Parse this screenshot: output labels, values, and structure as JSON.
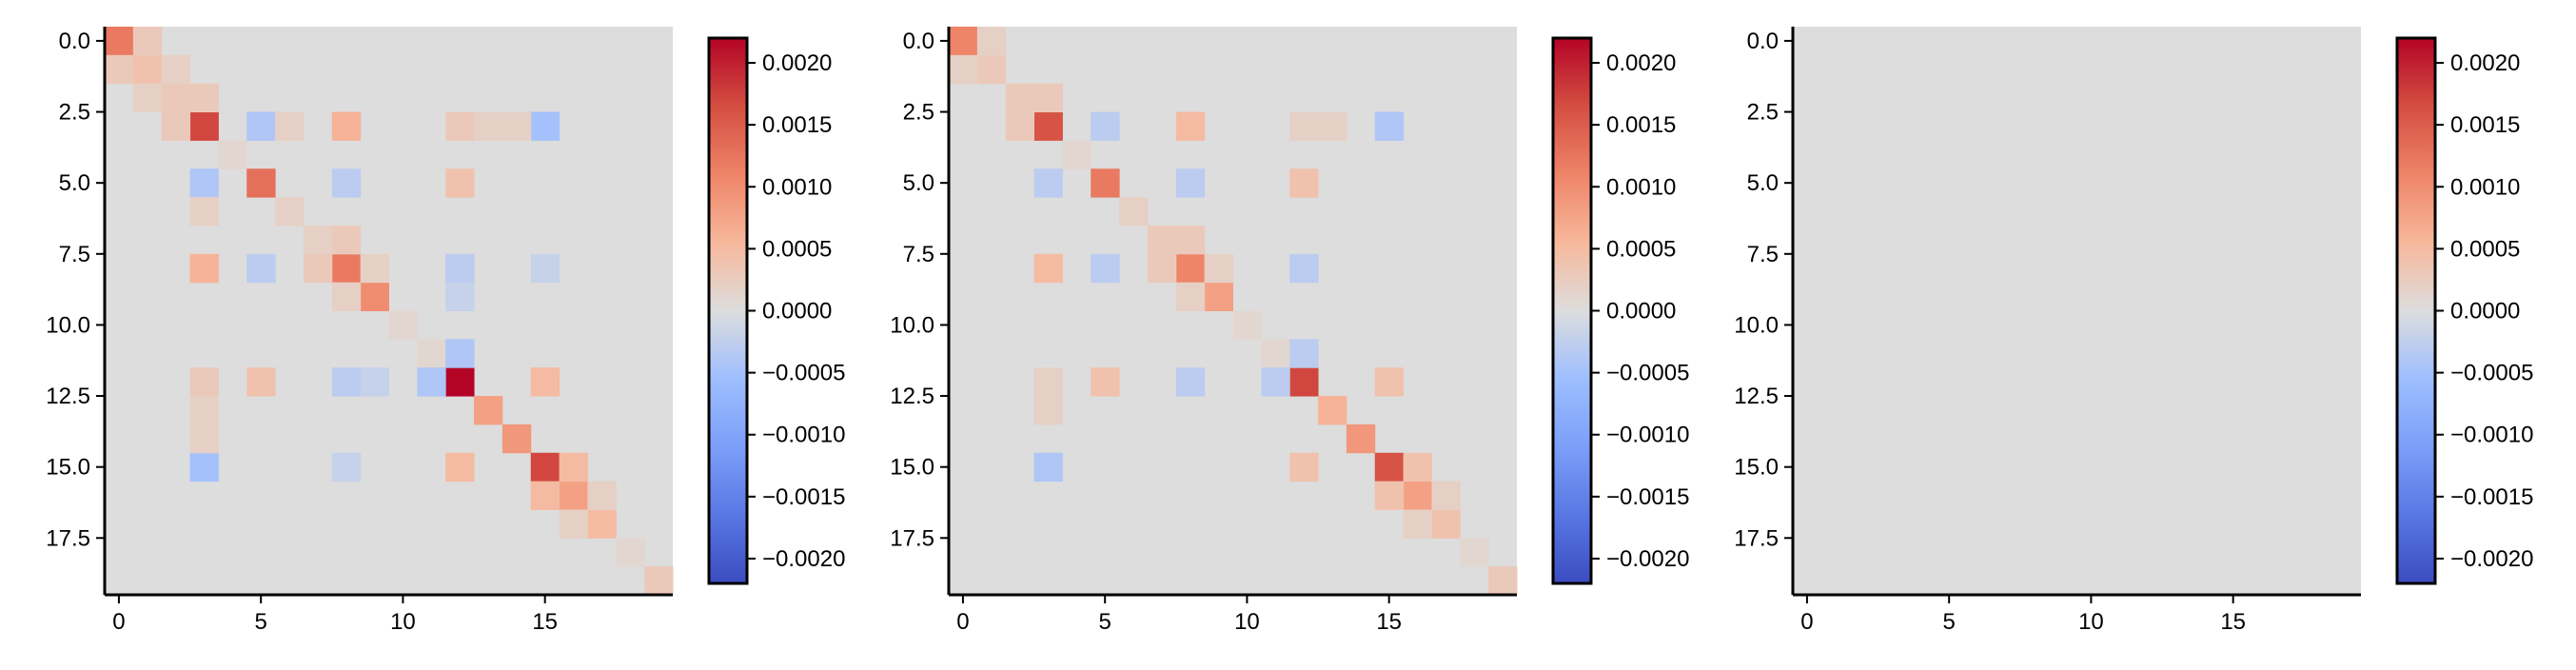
{
  "colorbar_ticks": [
    "0.0020",
    "0.0015",
    "0.0010",
    "0.0005",
    "0.0000",
    "−0.0005",
    "−0.0010",
    "−0.0015",
    "−0.0020"
  ],
  "chart_data": [
    {
      "type": "heatmap",
      "title": "",
      "xlabel": "",
      "ylabel": "",
      "size": 20,
      "x_ticks": [
        "0",
        "5",
        "10",
        "15"
      ],
      "y_ticks": [
        "0.0",
        "2.5",
        "5.0",
        "7.5",
        "10.0",
        "12.5",
        "15.0",
        "17.5"
      ],
      "colorbar_range": [
        -0.0022,
        0.0022
      ],
      "colormap": "coolwarm",
      "background_value": 0.0,
      "cells": [
        [
          0,
          0,
          0.0012
        ],
        [
          1,
          1,
          0.0004
        ],
        [
          2,
          2,
          0.0003
        ],
        [
          3,
          3,
          0.0017
        ],
        [
          4,
          4,
          0.0001
        ],
        [
          5,
          5,
          0.0013
        ],
        [
          6,
          6,
          0.0002
        ],
        [
          7,
          7,
          0.0002
        ],
        [
          8,
          8,
          0.0012
        ],
        [
          9,
          9,
          0.001
        ],
        [
          10,
          10,
          0.0001
        ],
        [
          11,
          11,
          0.0001
        ],
        [
          12,
          12,
          0.0022
        ],
        [
          13,
          13,
          0.0008
        ],
        [
          14,
          14,
          0.0009
        ],
        [
          15,
          15,
          0.0017
        ],
        [
          16,
          16,
          0.0008
        ],
        [
          17,
          17,
          0.0005
        ],
        [
          18,
          18,
          0.0001
        ],
        [
          19,
          19,
          0.0003
        ],
        [
          3,
          8,
          0.0006
        ],
        [
          8,
          3,
          0.0006
        ],
        [
          3,
          5,
          -0.0004
        ],
        [
          5,
          3,
          -0.0004
        ],
        [
          3,
          12,
          0.0003
        ],
        [
          12,
          3,
          0.0003
        ],
        [
          3,
          15,
          -0.0005
        ],
        [
          15,
          3,
          -0.0005
        ],
        [
          3,
          2,
          0.0003
        ],
        [
          2,
          3,
          0.0003
        ],
        [
          5,
          12,
          0.0004
        ],
        [
          12,
          5,
          0.0004
        ],
        [
          5,
          8,
          -0.0003
        ],
        [
          8,
          5,
          -0.0003
        ],
        [
          1,
          0,
          0.0003
        ],
        [
          0,
          1,
          0.0003
        ],
        [
          12,
          8,
          -0.0003
        ],
        [
          8,
          12,
          -0.0003
        ],
        [
          12,
          15,
          0.0005
        ],
        [
          15,
          12,
          0.0005
        ],
        [
          12,
          11,
          -0.0004
        ],
        [
          11,
          12,
          -0.0004
        ],
        [
          12,
          9,
          -0.0002
        ],
        [
          9,
          12,
          -0.0002
        ],
        [
          15,
          16,
          0.0005
        ],
        [
          16,
          15,
          0.0005
        ],
        [
          15,
          8,
          -0.0002
        ],
        [
          8,
          15,
          -0.0002
        ],
        [
          13,
          3,
          0.0002
        ],
        [
          3,
          13,
          0.0002
        ],
        [
          14,
          3,
          0.0002
        ],
        [
          3,
          14,
          0.0002
        ],
        [
          16,
          17,
          0.0002
        ],
        [
          17,
          16,
          0.0002
        ],
        [
          6,
          3,
          0.0002
        ],
        [
          3,
          6,
          0.0002
        ],
        [
          7,
          8,
          0.0003
        ],
        [
          8,
          7,
          0.0003
        ],
        [
          2,
          1,
          0.0002
        ],
        [
          1,
          2,
          0.0002
        ],
        [
          9,
          8,
          0.0002
        ],
        [
          8,
          9,
          0.0002
        ]
      ]
    },
    {
      "type": "heatmap",
      "title": "",
      "xlabel": "",
      "ylabel": "",
      "size": 20,
      "x_ticks": [
        "0",
        "5",
        "10",
        "15"
      ],
      "y_ticks": [
        "0.0",
        "2.5",
        "5.0",
        "7.5",
        "10.0",
        "12.5",
        "15.0",
        "17.5"
      ],
      "colorbar_range": [
        -0.0022,
        0.0022
      ],
      "colormap": "coolwarm",
      "background_value": 0.0,
      "cells": [
        [
          0,
          0,
          0.0011
        ],
        [
          1,
          1,
          0.0003
        ],
        [
          2,
          2,
          0.0003
        ],
        [
          3,
          3,
          0.0016
        ],
        [
          4,
          4,
          0.0001
        ],
        [
          5,
          5,
          0.0012
        ],
        [
          6,
          6,
          0.0002
        ],
        [
          7,
          7,
          0.0003
        ],
        [
          8,
          8,
          0.0011
        ],
        [
          9,
          9,
          0.0008
        ],
        [
          10,
          10,
          0.0001
        ],
        [
          11,
          11,
          0.0001
        ],
        [
          12,
          12,
          0.0017
        ],
        [
          13,
          13,
          0.0006
        ],
        [
          14,
          14,
          0.0009
        ],
        [
          15,
          15,
          0.0016
        ],
        [
          16,
          16,
          0.0008
        ],
        [
          17,
          17,
          0.0004
        ],
        [
          18,
          18,
          0.0001
        ],
        [
          19,
          19,
          0.0003
        ],
        [
          3,
          8,
          0.0005
        ],
        [
          8,
          3,
          0.0005
        ],
        [
          3,
          5,
          -0.0003
        ],
        [
          5,
          3,
          -0.0003
        ],
        [
          3,
          15,
          -0.0004
        ],
        [
          15,
          3,
          -0.0004
        ],
        [
          3,
          2,
          0.0003
        ],
        [
          2,
          3,
          0.0003
        ],
        [
          3,
          12,
          0.0002
        ],
        [
          12,
          3,
          0.0002
        ],
        [
          5,
          12,
          0.0004
        ],
        [
          12,
          5,
          0.0004
        ],
        [
          5,
          8,
          -0.0003
        ],
        [
          8,
          5,
          -0.0003
        ],
        [
          12,
          8,
          -0.0003
        ],
        [
          8,
          12,
          -0.0003
        ],
        [
          12,
          15,
          0.0004
        ],
        [
          15,
          12,
          0.0004
        ],
        [
          12,
          11,
          -0.0003
        ],
        [
          11,
          12,
          -0.0003
        ],
        [
          15,
          16,
          0.0004
        ],
        [
          16,
          15,
          0.0004
        ],
        [
          13,
          3,
          0.0002
        ],
        [
          3,
          13,
          0.0002
        ],
        [
          16,
          17,
          0.0002
        ],
        [
          17,
          16,
          0.0002
        ],
        [
          7,
          8,
          0.0003
        ],
        [
          8,
          7,
          0.0003
        ],
        [
          9,
          8,
          0.0002
        ],
        [
          8,
          9,
          0.0002
        ],
        [
          1,
          0,
          0.0002
        ],
        [
          0,
          1,
          0.0002
        ]
      ]
    },
    {
      "type": "heatmap",
      "title": "",
      "xlabel": "",
      "ylabel": "",
      "size": 20,
      "x_ticks": [
        "0",
        "5",
        "10",
        "15"
      ],
      "y_ticks": [
        "0.0",
        "2.5",
        "5.0",
        "7.5",
        "10.0",
        "12.5",
        "15.0",
        "17.5"
      ],
      "colorbar_range": [
        -0.0022,
        0.0022
      ],
      "colormap": "coolwarm",
      "background_value": 0.0,
      "cells": []
    }
  ]
}
